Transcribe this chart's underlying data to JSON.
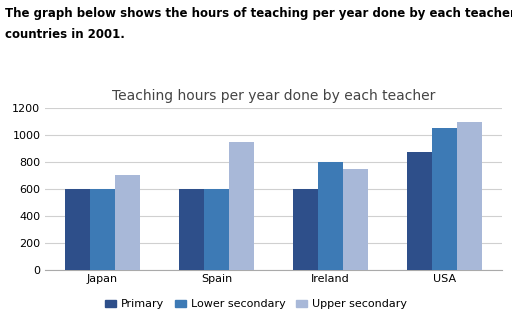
{
  "title": "Teaching hours per year done by each teacher",
  "header_line1": "The graph below shows the hours of teaching per year done by each teacher in four different",
  "header_line2": "countries in 2001.",
  "categories": [
    "Japan",
    "Spain",
    "Ireland",
    "USA"
  ],
  "series": {
    "Primary": [
      600,
      600,
      600,
      875
    ],
    "Lower secondary": [
      600,
      600,
      800,
      1050
    ],
    "Upper secondary": [
      700,
      950,
      750,
      1100
    ]
  },
  "colors": {
    "Primary": "#2e4f8a",
    "Lower secondary": "#3d7ab5",
    "Upper secondary": "#a8b8d8"
  },
  "ylim": [
    0,
    1200
  ],
  "yticks": [
    0,
    200,
    400,
    600,
    800,
    1000,
    1200
  ],
  "bar_width": 0.22,
  "legend_order": [
    "Primary",
    "Lower secondary",
    "Upper secondary"
  ],
  "grid_color": "#d0d0d0",
  "header_fontsize": 8.5,
  "title_fontsize": 10,
  "tick_fontsize": 8,
  "legend_fontsize": 8,
  "chart_border_color": "#c8c8c8"
}
